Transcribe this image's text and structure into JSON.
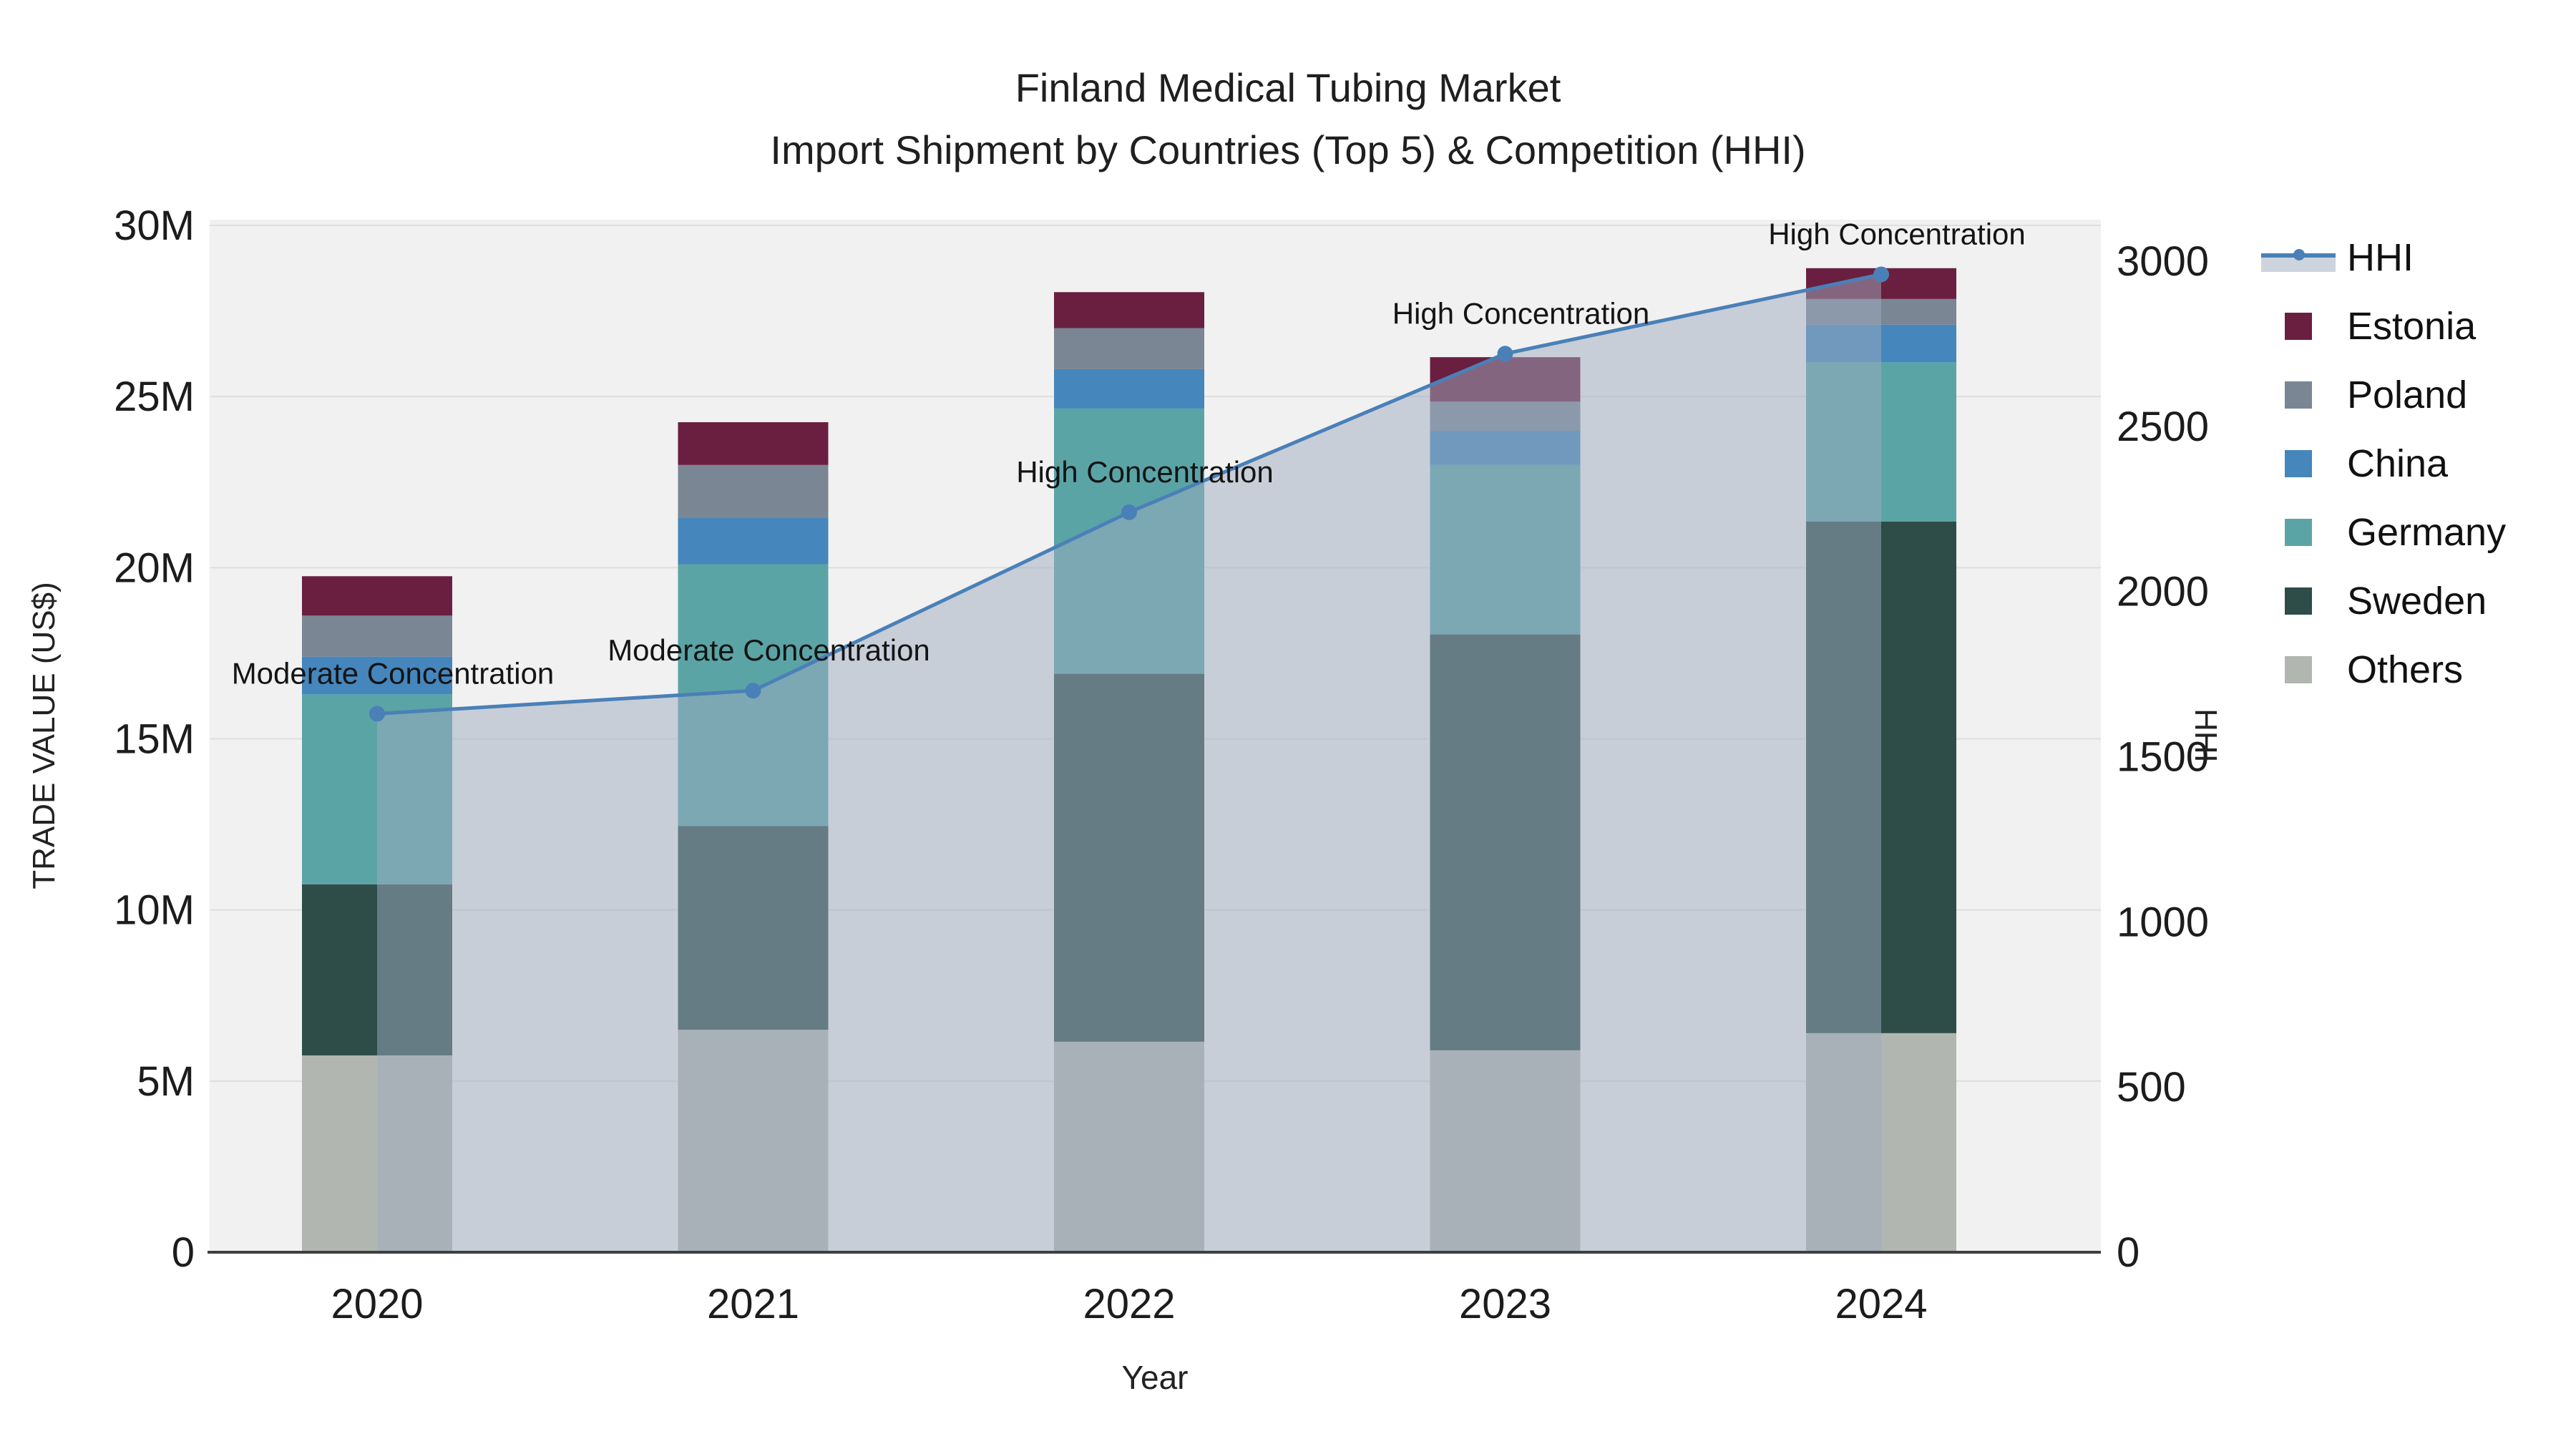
{
  "title": {
    "line1": "Finland Medical Tubing Market",
    "line2": "Import Shipment by Countries (Top 5) & Competition (HHI)"
  },
  "axes": {
    "x": {
      "title": "Year",
      "categories": [
        "2020",
        "2021",
        "2022",
        "2023",
        "2024"
      ]
    },
    "y_left": {
      "title": "TRADE VALUE (US$)",
      "tick_labels": [
        "0",
        "5M",
        "10M",
        "15M",
        "20M",
        "25M",
        "30M"
      ],
      "tick_values_musd": [
        0,
        5,
        10,
        15,
        20,
        25,
        30
      ]
    },
    "y_right": {
      "title": "HHI",
      "tick_labels": [
        "0",
        "500",
        "1000",
        "1500",
        "2000",
        "2500",
        "3000"
      ],
      "tick_values": [
        0,
        500,
        1000,
        1500,
        2000,
        2500,
        3000
      ]
    }
  },
  "legend": [
    {
      "label": "HHI",
      "type": "line",
      "color": "#4a80b8",
      "band": "#cdd4de"
    },
    {
      "label": "Estonia",
      "type": "square",
      "color": "#6a1f40"
    },
    {
      "label": "Poland",
      "type": "square",
      "color": "#7a8694"
    },
    {
      "label": "China",
      "type": "square",
      "color": "#4586bc"
    },
    {
      "label": "Germany",
      "type": "square",
      "color": "#5ba4a6"
    },
    {
      "label": "Sweden",
      "type": "square",
      "color": "#2e4d48"
    },
    {
      "label": "Others",
      "type": "square",
      "color": "#b2b6b1"
    }
  ],
  "chart_data": {
    "type": "bar",
    "subtype": "stacked-bars-with-line-overlay",
    "categories": [
      "2020",
      "2021",
      "2022",
      "2023",
      "2024"
    ],
    "stack_order_bottom_to_top": [
      "Others",
      "Sweden",
      "Germany",
      "China",
      "Poland",
      "Estonia"
    ],
    "series": [
      {
        "name": "Others",
        "values_musd": [
          5.75,
          6.5,
          6.15,
          5.9,
          6.4
        ],
        "color": "#b2b6b1"
      },
      {
        "name": "Sweden",
        "values_musd": [
          5.0,
          5.95,
          10.75,
          12.15,
          14.95
        ],
        "color": "#2e4d48"
      },
      {
        "name": "Germany",
        "values_musd": [
          5.55,
          7.65,
          7.75,
          4.95,
          4.65
        ],
        "color": "#5ba4a6"
      },
      {
        "name": "China",
        "values_musd": [
          1.1,
          1.35,
          1.15,
          1.0,
          1.1
        ],
        "color": "#4586bc"
      },
      {
        "name": "Poland",
        "values_musd": [
          1.2,
          1.55,
          1.2,
          0.85,
          0.75
        ],
        "color": "#7a8694"
      },
      {
        "name": "Estonia",
        "values_musd": [
          1.15,
          1.25,
          1.05,
          1.3,
          0.9
        ],
        "color": "#6a1f40"
      }
    ],
    "totals_musd": [
      19.75,
      24.25,
      28.05,
      26.15,
      28.75
    ],
    "hhi_line": {
      "name": "HHI",
      "values": [
        1630,
        1700,
        2240,
        2720,
        2960
      ],
      "color": "#4a80b8",
      "area_fill": "rgba(158,172,192,0.5)"
    },
    "annotations": [
      {
        "year": "2020",
        "text": "Moderate Concentration"
      },
      {
        "year": "2021",
        "text": "Moderate Concentration"
      },
      {
        "year": "2022",
        "text": "High Concentration"
      },
      {
        "year": "2023",
        "text": "High Concentration"
      },
      {
        "year": "2024",
        "text": "High Concentration"
      }
    ],
    "ylim_left_musd": [
      0,
      30
    ],
    "ylim_right": [
      0,
      3000
    ],
    "grid": true,
    "legend_position": "right"
  },
  "colors": {
    "background": "#ffffff",
    "plot_background": "#f1f1f1",
    "gridline": "#dedede",
    "axis_line": "#3f3f3f",
    "tick_text": "#1c1c1c",
    "annotation_text": "#141414"
  }
}
